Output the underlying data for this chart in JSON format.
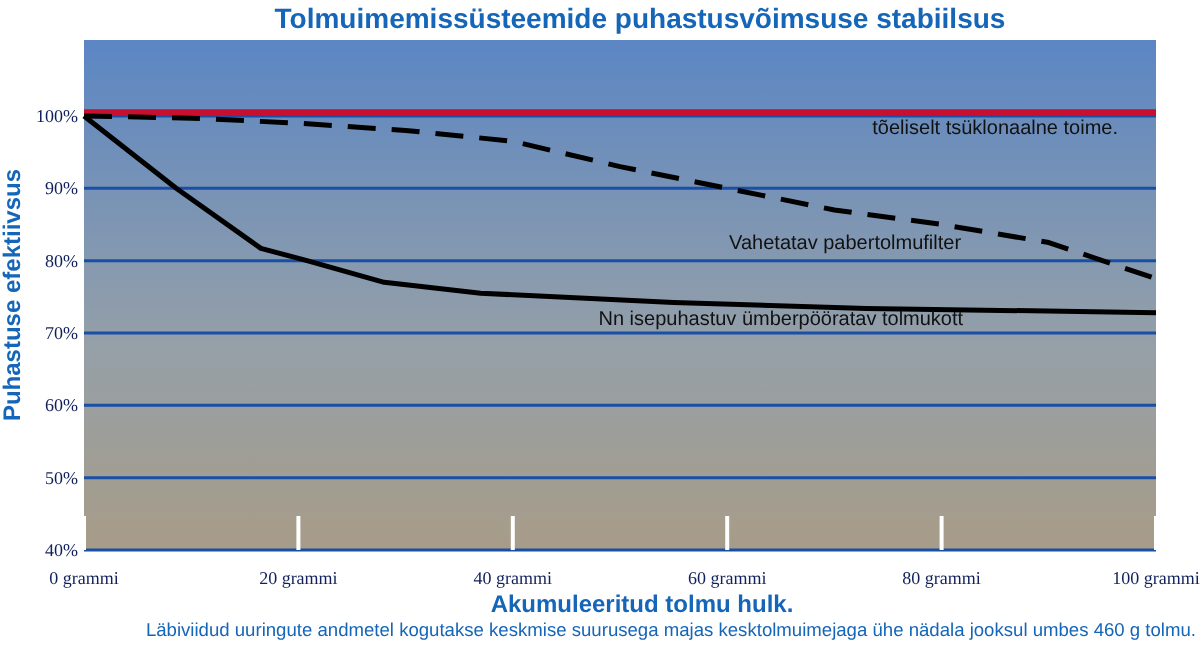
{
  "chart_data": {
    "type": "line",
    "title": "Tolmuimemissüsteemide puhastusvõimsuse stabiilsus",
    "xlabel": "Akumuleeritud tolmu hulk.",
    "ylabel": "Puhastuse efektiivsus",
    "annotations": [
      "Läbiviidud uuringute andmetel kogutakse keskmise suurusega majas kesktolmuimejaga ühe nädala jooksul umbes 460 g tolmu."
    ],
    "xlim": [
      0,
      100
    ],
    "xticks": [
      {
        "value": 0,
        "label": "0 grammi"
      },
      {
        "value": 20,
        "label": "20 grammi"
      },
      {
        "value": 40,
        "label": "40 grammi"
      },
      {
        "value": 60,
        "label": "60 grammi"
      },
      {
        "value": 80,
        "label": "80 grammi"
      },
      {
        "value": 100,
        "label": "100 grammi"
      }
    ],
    "ylim": [
      40,
      110.5
    ],
    "yticks": [
      {
        "value": 40,
        "label": "40%"
      },
      {
        "value": 50,
        "label": "50%"
      },
      {
        "value": 60,
        "label": "60%"
      },
      {
        "value": 70,
        "label": "70%"
      },
      {
        "value": 80,
        "label": "80%"
      },
      {
        "value": 90,
        "label": "90%"
      },
      {
        "value": 100,
        "label": "100%"
      }
    ],
    "grid": "y",
    "marker": "none",
    "series": [
      {
        "name": "tõeliselt tsüklonaalne toime.",
        "color": "#c8102e",
        "x": [
          0,
          100
        ],
        "values": [
          100.5,
          100.5
        ],
        "line_style": "solid"
      },
      {
        "name": "Vahetatav pabertolmufilter",
        "color": "#000000",
        "x": [
          0,
          10,
          20,
          30,
          40,
          50,
          60,
          70,
          80,
          90,
          100
        ],
        "values": [
          100,
          99.7,
          99,
          98,
          96.5,
          93,
          90,
          87,
          85,
          82.5,
          77.5
        ],
        "line_style": "dashed"
      },
      {
        "name": "Nn isepuhastuv ümberpööratav tolmukott",
        "color": "#000000",
        "x": [
          0,
          8.6,
          16.5,
          20.8,
          28,
          37,
          55,
          73,
          100
        ],
        "values": [
          100,
          90,
          81.7,
          80,
          77,
          75.5,
          74.2,
          73.4,
          72.8
        ],
        "line_style": "solid"
      }
    ]
  }
}
